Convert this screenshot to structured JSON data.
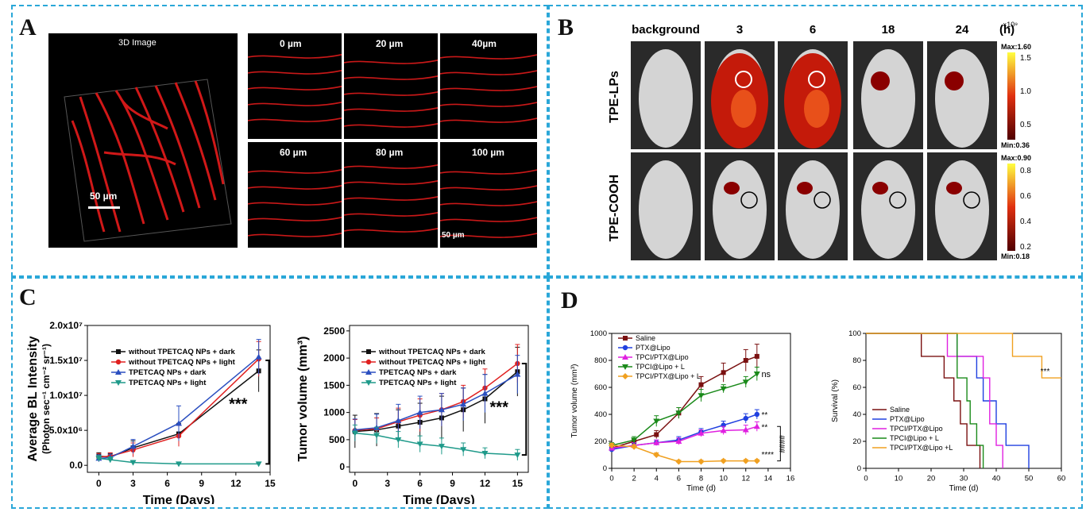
{
  "panels": {
    "A": "A",
    "B": "B",
    "C": "C",
    "D": "D"
  },
  "panelA": {
    "main_title": "3D Image",
    "main_scale": "50 µm",
    "depths": [
      "0 µm",
      "20 µm",
      "40µm",
      "60 µm",
      "80 µm",
      "100 µm"
    ],
    "small_scale": "50 µm"
  },
  "panelB": {
    "col_headers": [
      "background",
      "3",
      "6",
      "18",
      "24"
    ],
    "unit": "(h)",
    "rows": [
      "TPE-LPs",
      "TPE-COOH"
    ],
    "cb1": {
      "exp": "×10⁹",
      "max": "Max:1.60",
      "min": "Min:0.36",
      "ticks": [
        "1.5",
        "1.0",
        "0.5"
      ]
    },
    "cb2": {
      "max": "Max:0.90",
      "min": "Min:0.18",
      "ticks": [
        "0.8",
        "0.6",
        "0.4",
        "0.2"
      ]
    }
  },
  "colors": {
    "black": "#111111",
    "red": "#e02020",
    "blue": "#2b4fc0",
    "teal": "#1f9a8a",
    "brown": "#7a1010",
    "pblue": "#2040e0",
    "magenta": "#e020e0",
    "green": "#1a8a1a",
    "orange": "#f0a020",
    "accent": "#2aa7d8"
  },
  "chart_data": [
    {
      "type": "line",
      "id": "C1",
      "ylabel": "Average BL Intensity",
      "ylabel2": "(Photon sec⁻¹ cm⁻² sr⁻¹)",
      "xlabel": "Time (Days)",
      "xlim": [
        -1,
        15
      ],
      "ylim": [
        -0.1,
        2.0
      ],
      "xticks": [
        0,
        3,
        6,
        9,
        12,
        15
      ],
      "yticks": [
        {
          "v": 0,
          "t": "0.0"
        },
        {
          "v": 0.5,
          "t": "5.0x10⁶"
        },
        {
          "v": 1.0,
          "t": "1.0x10⁷"
        },
        {
          "v": 1.5,
          "t": "1.5x10⁷"
        },
        {
          "v": 2.0,
          "t": "2.0x10⁷"
        }
      ],
      "series": [
        {
          "name": "without TPETCAQ NPs + dark",
          "color": "#111111",
          "marker": "square",
          "x": [
            0,
            1,
            3,
            7,
            14
          ],
          "y": [
            0.13,
            0.12,
            0.25,
            0.45,
            1.35
          ],
          "err": [
            0.05,
            0.05,
            0.1,
            0.15,
            0.3
          ]
        },
        {
          "name": "without TPETCAQ NPs + light",
          "color": "#e02020",
          "marker": "circle",
          "x": [
            0,
            1,
            3,
            7,
            14
          ],
          "y": [
            0.12,
            0.13,
            0.22,
            0.42,
            1.52
          ],
          "err": [
            0.05,
            0.05,
            0.1,
            0.15,
            0.25
          ]
        },
        {
          "name": "TPETCAQ NPs + dark",
          "color": "#2b4fc0",
          "marker": "triangle",
          "x": [
            0,
            1,
            3,
            7,
            14
          ],
          "y": [
            0.1,
            0.11,
            0.27,
            0.6,
            1.55
          ],
          "err": [
            0.05,
            0.05,
            0.1,
            0.25,
            0.25
          ]
        },
        {
          "name": "TPETCAQ NPs + light",
          "color": "#1f9a8a",
          "marker": "tri-down",
          "x": [
            0,
            1,
            3,
            7,
            14
          ],
          "y": [
            0.1,
            0.08,
            0.04,
            0.02,
            0.02
          ],
          "err": [
            0.04,
            0.04,
            0.03,
            0.02,
            0.02
          ]
        }
      ],
      "annotation": "***"
    },
    {
      "type": "line",
      "id": "C2",
      "ylabel": "Tumor volume (mm³)",
      "xlabel": "Time (Days)",
      "xlim": [
        -0.5,
        16
      ],
      "ylim": [
        -100,
        2600
      ],
      "xticks": [
        0,
        3,
        6,
        9,
        12,
        15
      ],
      "yticks": [
        {
          "v": 0,
          "t": "0"
        },
        {
          "v": 500,
          "t": "500"
        },
        {
          "v": 1000,
          "t": "1000"
        },
        {
          "v": 1500,
          "t": "1500"
        },
        {
          "v": 2000,
          "t": "2000"
        },
        {
          "v": 2500,
          "t": "2500"
        }
      ],
      "series": [
        {
          "name": "without TPETCAQ NPs + dark",
          "color": "#111111",
          "marker": "square",
          "x": [
            0,
            2,
            4,
            6,
            8,
            10,
            12,
            15
          ],
          "y": [
            650,
            680,
            750,
            820,
            900,
            1050,
            1250,
            1750
          ],
          "err": [
            300,
            300,
            300,
            350,
            400,
            400,
            450,
            450
          ]
        },
        {
          "name": "without TPETCAQ NPs + light",
          "color": "#e02020",
          "marker": "circle",
          "x": [
            0,
            2,
            4,
            6,
            8,
            10,
            12,
            15
          ],
          "y": [
            670,
            700,
            830,
            950,
            1050,
            1200,
            1450,
            1900
          ],
          "err": [
            200,
            200,
            250,
            300,
            300,
            300,
            350,
            350
          ]
        },
        {
          "name": "TPETCAQ NPs + dark",
          "color": "#2b4fc0",
          "marker": "triangle",
          "x": [
            0,
            2,
            4,
            6,
            8,
            10,
            12,
            15
          ],
          "y": [
            680,
            720,
            850,
            1000,
            1050,
            1150,
            1350,
            1700
          ],
          "err": [
            200,
            250,
            300,
            300,
            300,
            300,
            350,
            350
          ]
        },
        {
          "name": "TPETCAQ NPs + light",
          "color": "#1f9a8a",
          "marker": "tri-down",
          "x": [
            0,
            2,
            4,
            6,
            8,
            10,
            12,
            15
          ],
          "y": [
            620,
            580,
            500,
            420,
            380,
            320,
            250,
            220
          ],
          "err": [
            150,
            150,
            150,
            150,
            150,
            120,
            100,
            100
          ]
        }
      ],
      "annotation": "***"
    },
    {
      "type": "line",
      "id": "D1",
      "ylabel": "Tumor volume (mm³)",
      "xlabel": "Time (d)",
      "xlim": [
        0,
        16
      ],
      "ylim": [
        0,
        1000
      ],
      "xticks": [
        0,
        2,
        4,
        6,
        8,
        10,
        12,
        14,
        16
      ],
      "yticks": [
        {
          "v": 0,
          "t": "0"
        },
        {
          "v": 200,
          "t": "200"
        },
        {
          "v": 400,
          "t": "400"
        },
        {
          "v": 600,
          "t": "600"
        },
        {
          "v": 800,
          "t": "800"
        },
        {
          "v": 1000,
          "t": "1000"
        }
      ],
      "series": [
        {
          "name": "Saline",
          "color": "#7a1010",
          "marker": "square",
          "x": [
            0,
            2,
            4,
            6,
            8,
            10,
            12,
            13
          ],
          "y": [
            150,
            200,
            250,
            410,
            620,
            710,
            800,
            830
          ],
          "err": [
            20,
            20,
            30,
            40,
            60,
            70,
            80,
            90
          ]
        },
        {
          "name": "PTX@Lipo",
          "color": "#2040e0",
          "marker": "circle",
          "x": [
            0,
            2,
            4,
            6,
            8,
            10,
            12,
            13
          ],
          "y": [
            140,
            170,
            190,
            210,
            270,
            320,
            370,
            400
          ],
          "err": [
            15,
            20,
            20,
            25,
            25,
            30,
            35,
            35
          ]
        },
        {
          "name": "TPCI/PTX@Lipo",
          "color": "#e020e0",
          "marker": "triangle",
          "x": [
            0,
            2,
            4,
            6,
            8,
            10,
            12,
            13
          ],
          "y": [
            150,
            170,
            190,
            200,
            260,
            280,
            285,
            310
          ],
          "err": [
            15,
            20,
            20,
            25,
            25,
            30,
            35,
            35
          ]
        },
        {
          "name": "TPCI@Lipo + L",
          "color": "#1a8a1a",
          "marker": "tri-down",
          "x": [
            0,
            2,
            4,
            6,
            8,
            10,
            12,
            13
          ],
          "y": [
            170,
            210,
            350,
            410,
            540,
            590,
            640,
            700
          ],
          "err": [
            20,
            25,
            40,
            40,
            45,
            30,
            40,
            50
          ]
        },
        {
          "name": "TPCI/PTX@Lipo + L",
          "color": "#f0a020",
          "marker": "diamond",
          "x": [
            0,
            2,
            4,
            6,
            8,
            10,
            12,
            13
          ],
          "y": [
            170,
            160,
            100,
            50,
            50,
            55,
            55,
            55
          ],
          "err": [
            15,
            15,
            15,
            10,
            10,
            10,
            10,
            10
          ]
        }
      ],
      "annotations": {
        "ns": "ns",
        "a2": "**",
        "a3": "**",
        "a4": "****",
        "hash": "####"
      }
    },
    {
      "type": "line",
      "id": "D2",
      "ylabel": "Survival (%)",
      "xlabel": "Time (d)",
      "xlim": [
        0,
        60
      ],
      "ylim": [
        0,
        100
      ],
      "xticks": [
        0,
        10,
        20,
        30,
        40,
        50,
        60
      ],
      "yticks": [
        {
          "v": 0,
          "t": "0"
        },
        {
          "v": 20,
          "t": "20"
        },
        {
          "v": 40,
          "t": "40"
        },
        {
          "v": 60,
          "t": "60"
        },
        {
          "v": 80,
          "t": "80"
        },
        {
          "v": 100,
          "t": "100"
        }
      ],
      "series": [
        {
          "name": "Saline",
          "color": "#7a1010",
          "steps": [
            [
              0,
              100
            ],
            [
              17,
              100
            ],
            [
              17,
              83
            ],
            [
              24,
              83
            ],
            [
              24,
              67
            ],
            [
              27,
              67
            ],
            [
              27,
              50
            ],
            [
              29,
              50
            ],
            [
              29,
              33
            ],
            [
              31,
              33
            ],
            [
              31,
              17
            ],
            [
              35,
              17
            ],
            [
              35,
              0
            ]
          ]
        },
        {
          "name": "PTX@Lipo",
          "color": "#2040e0",
          "steps": [
            [
              0,
              100
            ],
            [
              28,
              100
            ],
            [
              28,
              83
            ],
            [
              34,
              83
            ],
            [
              34,
              67
            ],
            [
              36,
              67
            ],
            [
              36,
              50
            ],
            [
              40,
              50
            ],
            [
              40,
              33
            ],
            [
              43,
              33
            ],
            [
              43,
              17
            ],
            [
              50,
              17
            ],
            [
              50,
              0
            ]
          ]
        },
        {
          "name": "TPCI/PTX@Lipo",
          "color": "#e020e0",
          "steps": [
            [
              0,
              100
            ],
            [
              25,
              100
            ],
            [
              25,
              83
            ],
            [
              36,
              83
            ],
            [
              36,
              67
            ],
            [
              38,
              67
            ],
            [
              38,
              33
            ],
            [
              40,
              33
            ],
            [
              40,
              17
            ],
            [
              42,
              17
            ],
            [
              42,
              0
            ]
          ]
        },
        {
          "name": "TPCI@Lipo + L",
          "color": "#1a8a1a",
          "steps": [
            [
              0,
              100
            ],
            [
              28,
              100
            ],
            [
              28,
              67
            ],
            [
              31,
              67
            ],
            [
              31,
              50
            ],
            [
              32,
              50
            ],
            [
              32,
              33
            ],
            [
              34,
              33
            ],
            [
              34,
              17
            ],
            [
              36,
              17
            ],
            [
              36,
              0
            ]
          ]
        },
        {
          "name": "TPCI/PTX@Lipo +L",
          "color": "#f0a020",
          "steps": [
            [
              0,
              100
            ],
            [
              45,
              100
            ],
            [
              45,
              83
            ],
            [
              54,
              83
            ],
            [
              54,
              67
            ],
            [
              60,
              67
            ]
          ]
        }
      ],
      "annotation": "***"
    }
  ]
}
